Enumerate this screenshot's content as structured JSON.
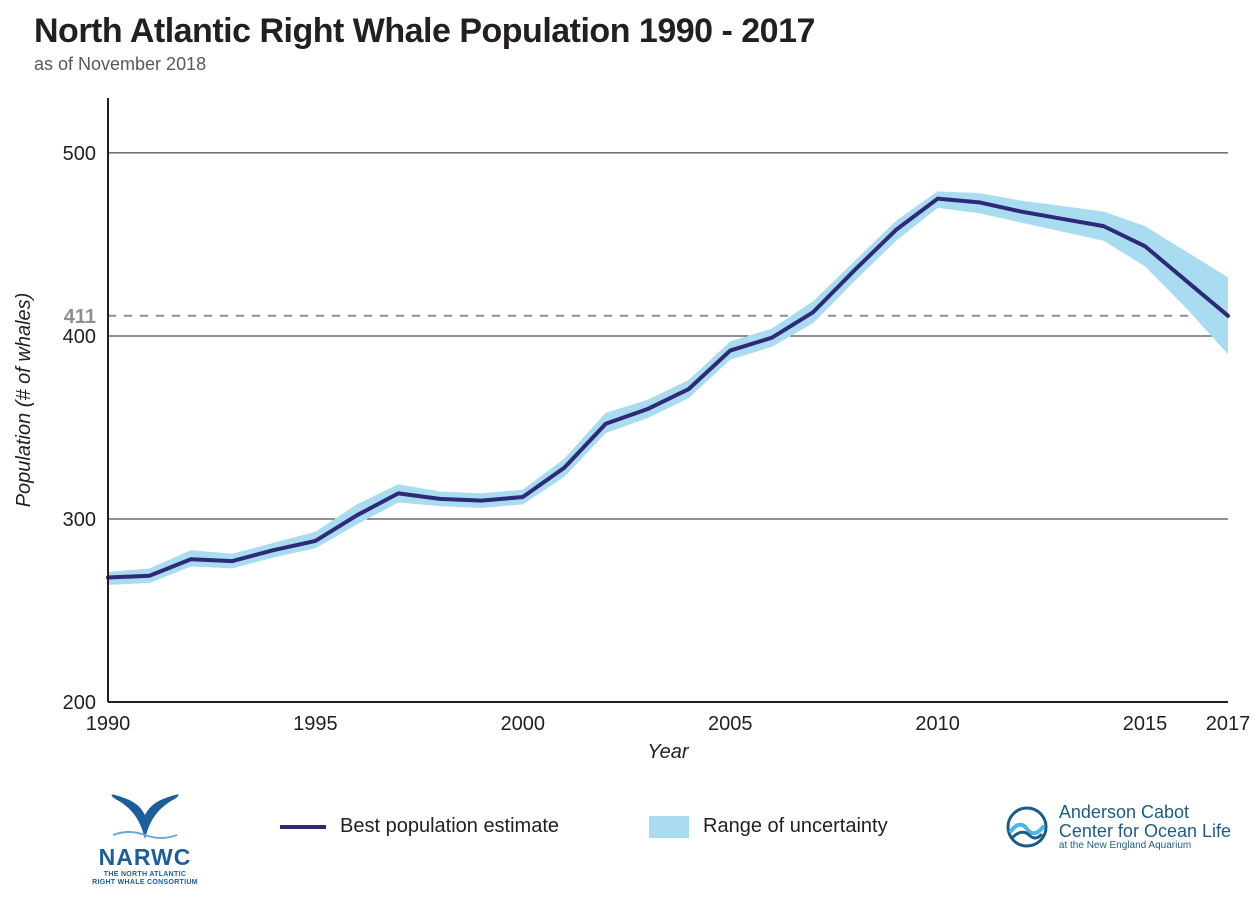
{
  "title": "North Atlantic Right Whale Population 1990 - 2017",
  "subtitle": "as of November 2018",
  "chart": {
    "type": "line-with-band",
    "x_label": "Year",
    "y_label": "Population (# of whales)",
    "xlim": [
      1990,
      2017
    ],
    "ylim": [
      200,
      530
    ],
    "x_ticks": [
      1990,
      1995,
      2000,
      2005,
      2010,
      2015,
      2017
    ],
    "y_ticks": [
      200,
      300,
      400,
      500
    ],
    "reference_line": {
      "value": 411,
      "label": "411",
      "color": "#8d8f92",
      "dash": "8 8"
    },
    "background_color": "#ffffff",
    "axis_color": "#231f20",
    "grid_color": "#231f20",
    "grid_width": 1,
    "axis_width": 2,
    "tick_fontsize": 20,
    "label_fontsize": 20,
    "series_line": {
      "name": "Best population estimate",
      "color": "#2e2a77",
      "width": 4,
      "years": [
        1990,
        1991,
        1992,
        1993,
        1994,
        1995,
        1996,
        1997,
        1998,
        1999,
        2000,
        2001,
        2002,
        2003,
        2004,
        2005,
        2006,
        2007,
        2008,
        2009,
        2010,
        2011,
        2012,
        2013,
        2014,
        2015,
        2016,
        2017
      ],
      "values": [
        268,
        269,
        278,
        277,
        283,
        288,
        302,
        314,
        311,
        310,
        312,
        328,
        352,
        360,
        371,
        392,
        399,
        413,
        436,
        458,
        475,
        473,
        468,
        464,
        460,
        449,
        430,
        411
      ]
    },
    "series_band": {
      "name": "Range of uncertainty",
      "color": "#a9dcf0",
      "opacity": 1.0,
      "years": [
        1990,
        1991,
        1992,
        1993,
        1994,
        1995,
        1996,
        1997,
        1998,
        1999,
        2000,
        2001,
        2002,
        2003,
        2004,
        2005,
        2006,
        2007,
        2008,
        2009,
        2010,
        2011,
        2012,
        2013,
        2014,
        2015,
        2016,
        2017
      ],
      "upper": [
        271,
        273,
        283,
        281,
        287,
        293,
        308,
        319,
        315,
        314,
        316,
        333,
        358,
        365,
        376,
        397,
        404,
        419,
        441,
        463,
        479,
        478,
        474,
        471,
        468,
        460,
        446,
        432
      ],
      "lower": [
        264,
        265,
        274,
        273,
        279,
        284,
        297,
        309,
        307,
        306,
        308,
        323,
        347,
        355,
        366,
        387,
        394,
        407,
        430,
        452,
        470,
        467,
        462,
        457,
        452,
        438,
        415,
        390
      ]
    }
  },
  "legend": {
    "line_label": "Best population estimate",
    "band_label": "Range of uncertainty"
  },
  "logos": {
    "left": {
      "acronym": "NARWC",
      "line1": "THE NORTH ATLANTIC",
      "line2": "RIGHT WHALE CONSORTIUM",
      "color": "#1c5e9b"
    },
    "right": {
      "line1": "Anderson Cabot",
      "line2": "Center for Ocean Life",
      "line3": "at the New England Aquarium",
      "color": "#1d5c88",
      "wave_color": "#49b8e6"
    }
  }
}
